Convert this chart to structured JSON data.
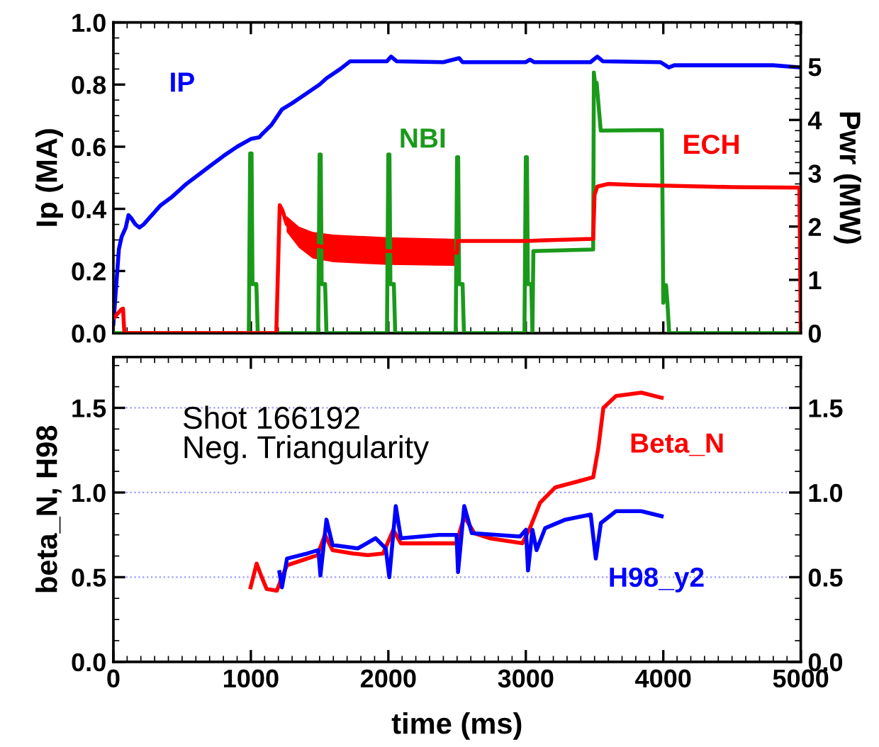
{
  "chart_data": [
    {
      "type": "line",
      "ylabel": "Ip (MA)",
      "y2label": "Pwr (MW)",
      "xlim": [
        0,
        5000
      ],
      "xticks": [
        0,
        1000,
        2000,
        3000,
        4000,
        5000
      ],
      "ylim": [
        0,
        1.0
      ],
      "yticks": [
        {
          "value": 0,
          "label": "0.0"
        },
        {
          "value": 0.2,
          "label": "0.2"
        },
        {
          "value": 0.4,
          "label": "0.4"
        },
        {
          "value": 0.6,
          "label": "0.6"
        },
        {
          "value": 0.8,
          "label": "0.8"
        },
        {
          "value": 1.0,
          "label": "1.0"
        }
      ],
      "y2lim": [
        0,
        5.83
      ],
      "y2ticks": [
        0,
        1,
        2,
        3,
        4,
        5
      ],
      "tick_labels": "y",
      "grid": false,
      "marker": "none",
      "line_style": "solid",
      "series": [
        {
          "name": "IP",
          "color": "#0000ff",
          "x": [
            0,
            20,
            40,
            60,
            90,
            110,
            130,
            160,
            190,
            220,
            260,
            340,
            430,
            530,
            620,
            710,
            800,
            900,
            1000,
            1060,
            1080,
            1150,
            1226,
            1300,
            1400,
            1500,
            1550,
            1650,
            1723,
            1800,
            1990,
            2020,
            2060,
            2400,
            2515,
            2540,
            3000,
            3030,
            3060,
            3470,
            3520,
            3560,
            3980,
            4040,
            4080,
            4800,
            5000
          ],
          "values": [
            0.03,
            0.15,
            0.27,
            0.31,
            0.34,
            0.38,
            0.37,
            0.35,
            0.34,
            0.35,
            0.37,
            0.41,
            0.44,
            0.48,
            0.51,
            0.54,
            0.57,
            0.6,
            0.625,
            0.63,
            0.64,
            0.67,
            0.72,
            0.74,
            0.77,
            0.8,
            0.82,
            0.85,
            0.875,
            0.875,
            0.875,
            0.89,
            0.875,
            0.872,
            0.885,
            0.872,
            0.872,
            0.88,
            0.872,
            0.872,
            0.89,
            0.875,
            0.872,
            0.855,
            0.862,
            0.862,
            0.855
          ]
        },
        {
          "name": "NBI",
          "color": "#1a9a1a",
          "axis": "y2",
          "x": [
            0,
            985,
            995,
            1005,
            1012,
            1040,
            1050,
            1490,
            1500,
            1508,
            1515,
            1540,
            1550,
            1990,
            2000,
            2008,
            2015,
            2040,
            2050,
            2490,
            2500,
            2508,
            2515,
            2540,
            2550,
            2990,
            3000,
            3008,
            3015,
            3040,
            3048,
            3055,
            3490,
            3495,
            3505,
            3515,
            3545,
            3990,
            4000,
            4020,
            4030,
            4043,
            5000
          ],
          "values": [
            0,
            0,
            3.37,
            3.37,
            0.92,
            0.92,
            0,
            0,
            3.35,
            3.35,
            0.92,
            0.92,
            0,
            0,
            3.35,
            3.35,
            0.92,
            0.92,
            0,
            0,
            3.3,
            3.3,
            0.92,
            0.92,
            0,
            0,
            3.3,
            3.3,
            0.92,
            0.92,
            0,
            1.54,
            1.57,
            4.89,
            4.65,
            4.7,
            3.8,
            3.81,
            0.57,
            0.9,
            0.57,
            0,
            0
          ]
        },
        {
          "name": "ECH",
          "color": "#ff0000",
          "axis": "y2",
          "x": [
            0,
            60,
            70,
            80,
            1185,
            1210,
            1230,
            1260,
            1350,
            1450,
            1600,
            2000,
            2500,
            2505,
            3000,
            3490,
            3500,
            3520,
            3600,
            3800,
            4500,
            4990,
            5000
          ],
          "values": [
            0.28,
            0.45,
            0.46,
            0,
            0,
            2.4,
            2.3,
            2.05,
            1.8,
            1.65,
            1.59,
            1.54,
            1.51,
            1.73,
            1.73,
            1.77,
            2.6,
            2.75,
            2.8,
            2.78,
            2.74,
            2.73,
            0
          ],
          "lower": [
            null,
            null,
            null,
            null,
            null,
            null,
            null,
            1.9,
            1.6,
            1.4,
            1.33,
            1.28,
            1.26,
            null,
            null,
            null,
            null,
            null,
            null,
            null,
            null,
            null,
            null
          ],
          "upper": [
            null,
            null,
            null,
            null,
            null,
            null,
            null,
            2.2,
            2.0,
            1.9,
            1.85,
            1.8,
            1.77,
            null,
            null,
            null,
            null,
            null,
            null,
            null,
            null,
            null,
            null
          ]
        }
      ]
    },
    {
      "type": "line",
      "ylabel": "beta_N, H98",
      "xlabel": "time (ms)",
      "xlim": [
        0,
        5000
      ],
      "xticks": [
        0,
        1000,
        2000,
        3000,
        4000,
        5000
      ],
      "ylim": [
        0,
        1.8
      ],
      "yticks": [
        {
          "value": 0,
          "label": "0.0"
        },
        {
          "value": 0.5,
          "label": "0.5"
        },
        {
          "value": 1.0,
          "label": "1.0"
        },
        {
          "value": 1.5,
          "label": "1.5"
        }
      ],
      "y2lim": [
        0,
        1.8
      ],
      "y2ticks": [
        {
          "value": 0,
          "label": "0.0"
        },
        {
          "value": 0.5,
          "label": "0.5"
        },
        {
          "value": 1.0,
          "label": "1.0"
        },
        {
          "value": 1.5,
          "label": "1.5"
        }
      ],
      "grid": "y",
      "marker": "none",
      "line_style": "solid",
      "annotations": [
        "Shot 166192\nNeg. Triangularity"
      ],
      "series": [
        {
          "name": "Beta_N",
          "color": "#ff0000",
          "x": [
            998,
            1042,
            1079,
            1115,
            1189,
            1226,
            1263,
            1373,
            1484,
            1539,
            1594,
            1742,
            1852,
            1962,
            2036,
            2091,
            2367,
            2496,
            2552,
            2625,
            2736,
            2975,
            3030,
            3104,
            3214,
            3398,
            3490,
            3527,
            3564,
            3656,
            3840,
            3988
          ],
          "values": [
            0.44,
            0.58,
            0.5,
            0.43,
            0.42,
            0.5,
            0.57,
            0.6,
            0.63,
            0.75,
            0.66,
            0.64,
            0.63,
            0.64,
            0.78,
            0.7,
            0.7,
            0.7,
            0.86,
            0.76,
            0.73,
            0.7,
            0.79,
            0.94,
            1.03,
            1.07,
            1.09,
            1.26,
            1.5,
            1.57,
            1.59,
            1.56
          ]
        },
        {
          "name": "H98_y2",
          "color": "#0000ff",
          "x": [
            1208,
            1226,
            1263,
            1410,
            1491,
            1506,
            1550,
            1594,
            1778,
            1907,
            1981,
            2007,
            2054,
            2091,
            2367,
            2496,
            2507,
            2552,
            2607,
            2957,
            3001,
            3016,
            3048,
            3078,
            3141,
            3288,
            3472,
            3509,
            3546,
            3656,
            3840,
            3988
          ],
          "values": [
            0.53,
            0.44,
            0.61,
            0.64,
            0.66,
            0.51,
            0.84,
            0.69,
            0.67,
            0.73,
            0.67,
            0.5,
            0.92,
            0.73,
            0.75,
            0.75,
            0.53,
            0.92,
            0.76,
            0.74,
            0.78,
            0.54,
            0.78,
            0.66,
            0.79,
            0.84,
            0.87,
            0.61,
            0.82,
            0.89,
            0.89,
            0.86
          ]
        }
      ]
    }
  ]
}
